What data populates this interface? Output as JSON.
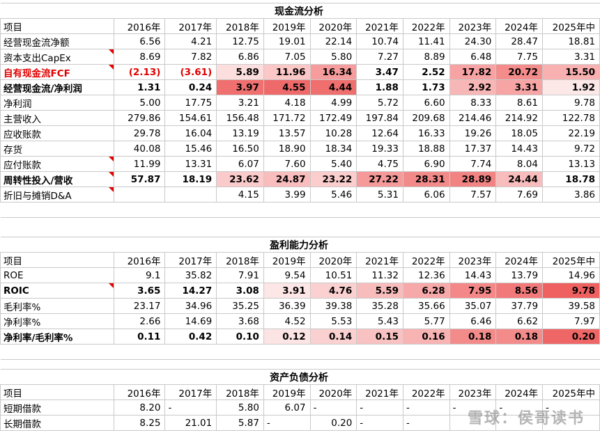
{
  "sections": [
    {
      "title": "现金流分析",
      "header": [
        "项目",
        "2016年",
        "2017年",
        "2018年",
        "2019年",
        "2020年",
        "2021年",
        "2022年",
        "2023年",
        "2024年",
        "2025年中"
      ],
      "rows": [
        {
          "label": "经营现金流净额",
          "values": [
            "6.56",
            "4.21",
            "12.75",
            "19.01",
            "22.14",
            "10.74",
            "11.41",
            "24.30",
            "28.47",
            "18.81"
          ]
        },
        {
          "label": "资本支出CapEx",
          "values": [
            "8.69",
            "7.82",
            "6.86",
            "7.05",
            "5.80",
            "7.27",
            "8.89",
            "6.48",
            "7.75",
            "3.31"
          ],
          "flag": true
        },
        {
          "label": "自有现金流FCF",
          "values": [
            "(2.13)",
            "(3.61)",
            "5.89",
            "11.96",
            "16.34",
            "3.47",
            "2.52",
            "17.82",
            "20.72",
            "15.50"
          ],
          "bold": true,
          "red": true,
          "flag": true,
          "heat": [
            null,
            null,
            "#fcdede",
            "#fbc7c7",
            "#f79c9c",
            null,
            null,
            "#f7a3a3",
            "#f48c8c",
            "#f8b0b0"
          ]
        },
        {
          "label": "经营现金流/净利润",
          "values": [
            "1.31",
            "0.24",
            "3.97",
            "4.55",
            "4.44",
            "1.88",
            "1.73",
            "2.92",
            "3.31",
            "1.92"
          ],
          "bold": true,
          "heat": [
            null,
            null,
            "#f07070",
            "#ee6a6a",
            "#ef6e6e",
            null,
            null,
            "#f8b7b7",
            "#f6a4a4",
            "#fde8e8"
          ]
        },
        {
          "label": "净利润",
          "values": [
            "5.00",
            "17.75",
            "3.21",
            "4.18",
            "4.99",
            "5.72",
            "6.60",
            "8.33",
            "8.61",
            "9.78"
          ]
        },
        {
          "label": "主营收入",
          "values": [
            "279.86",
            "154.61",
            "156.48",
            "171.72",
            "172.49",
            "197.84",
            "209.68",
            "214.46",
            "214.92",
            "122.78"
          ]
        },
        {
          "label": "应收账款",
          "values": [
            "29.78",
            "16.04",
            "13.19",
            "13.57",
            "10.28",
            "12.64",
            "16.33",
            "19.26",
            "18.05",
            "22.19"
          ]
        },
        {
          "label": "存货",
          "values": [
            "40.08",
            "15.46",
            "16.50",
            "18.90",
            "18.34",
            "19.33",
            "18.88",
            "17.37",
            "14.43",
            "9.72"
          ]
        },
        {
          "label": "应付账款",
          "values": [
            "11.99",
            "13.31",
            "6.07",
            "7.60",
            "5.40",
            "4.75",
            "6.90",
            "7.74",
            "8.04",
            "13.13"
          ],
          "flag": true
        },
        {
          "label": "周转性投入/营收",
          "values": [
            "57.87",
            "18.19",
            "23.62",
            "24.87",
            "23.22",
            "27.22",
            "28.31",
            "28.89",
            "24.44",
            "18.78"
          ],
          "bold": true,
          "flag": true,
          "heat": [
            null,
            null,
            "#fbcaca",
            "#f9bdbd",
            "#fbcdcd",
            "#f59999",
            "#f38a8a",
            "#f28383",
            "#f9bcbc",
            null
          ]
        },
        {
          "label": "折旧与摊销D&A",
          "values": [
            "",
            "",
            "4.15",
            "3.99",
            "5.46",
            "5.31",
            "6.06",
            "7.57",
            "7.69",
            "3.86"
          ],
          "flag": true
        }
      ]
    },
    {
      "title": "盈利能力分析",
      "header": [
        "项目",
        "2016年",
        "2017年",
        "2018年",
        "2019年",
        "2020年",
        "2021年",
        "2022年",
        "2023年",
        "2024年",
        "2025年中"
      ],
      "rows": [
        {
          "label": "ROE",
          "values": [
            "9.1",
            "35.82",
            "7.91",
            "9.54",
            "10.51",
            "11.32",
            "12.36",
            "14.43",
            "13.79",
            "14.96"
          ]
        },
        {
          "label": "ROIC",
          "values": [
            "3.65",
            "14.27",
            "3.08",
            "3.91",
            "4.76",
            "5.59",
            "6.28",
            "7.95",
            "8.56",
            "9.78"
          ],
          "bold": true,
          "flag": true,
          "heat": [
            null,
            null,
            null,
            "#fde6e6",
            "#fbd0d0",
            "#f9bcbc",
            "#f7a9a9",
            "#f48888",
            "#f27979",
            "#ef6161"
          ]
        },
        {
          "label": "毛利率%",
          "values": [
            "23.17",
            "34.96",
            "35.25",
            "36.39",
            "39.38",
            "35.28",
            "35.66",
            "35.07",
            "37.79",
            "39.58"
          ]
        },
        {
          "label": "净利率%",
          "values": [
            "2.66",
            "14.69",
            "3.68",
            "4.52",
            "5.53",
            "5.43",
            "5.77",
            "6.46",
            "6.62",
            "7.97"
          ]
        },
        {
          "label": "净利率/毛利率%",
          "values": [
            "0.11",
            "0.42",
            "0.10",
            "0.12",
            "0.14",
            "0.15",
            "0.16",
            "0.18",
            "0.18",
            "0.20"
          ],
          "bold": true,
          "heat": [
            null,
            null,
            null,
            "#fde4e4",
            "#fbd0d0",
            "#f9c2c2",
            "#f8b3b3",
            "#f38b8b",
            "#f38b8b",
            "#ef6666"
          ]
        }
      ]
    },
    {
      "title": "资产负债分析",
      "header": [
        "项目",
        "2016年",
        "2017年",
        "2018年",
        "2019年",
        "2020年",
        "2021年",
        "2022年",
        "2023年",
        "2024年",
        "2025年中"
      ],
      "rows": [
        {
          "label": "短期借款",
          "values": [
            "8.20",
            "-",
            "5.80",
            "6.07",
            "-",
            "-",
            "-",
            "-",
            "-",
            "-"
          ]
        },
        {
          "label": "长期借款",
          "values": [
            "8.25",
            "21.01",
            "5.87",
            "-",
            "0.20",
            "-",
            "-",
            "",
            "",
            ""
          ]
        }
      ]
    }
  ],
  "watermark": "雪球：侯哥读书"
}
